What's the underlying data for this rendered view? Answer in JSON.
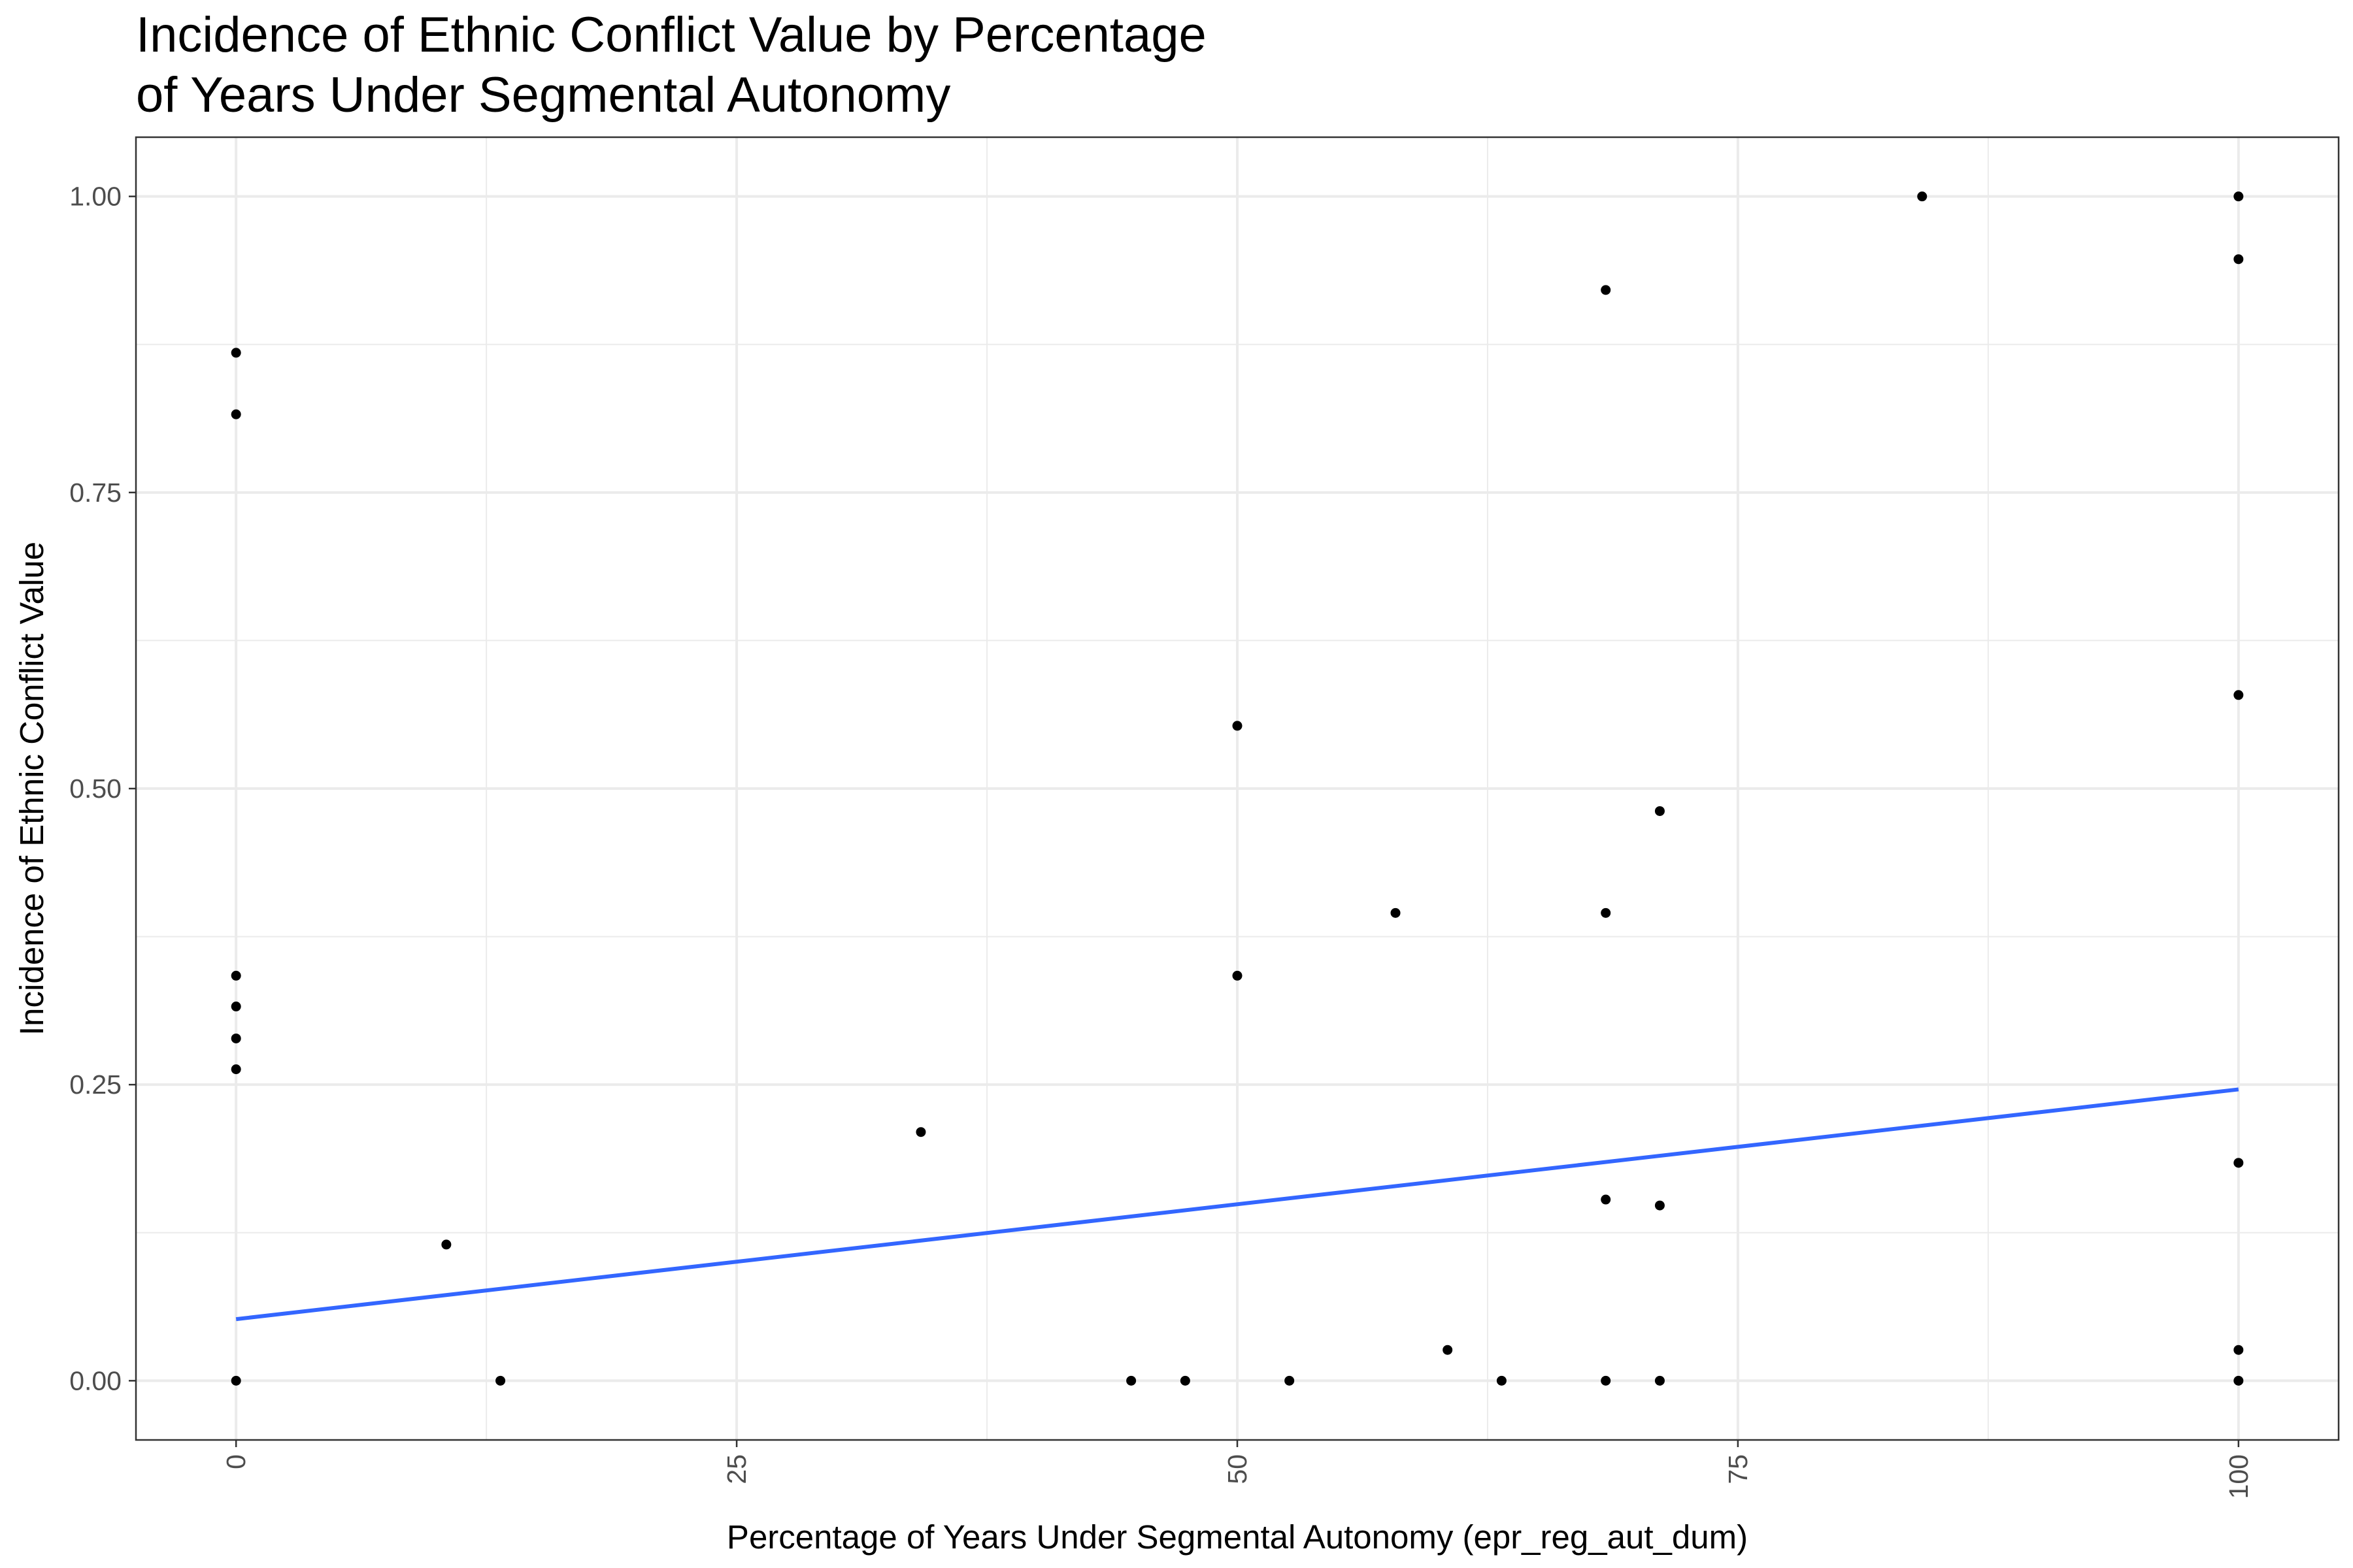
{
  "chart_data": {
    "type": "scatter",
    "title": "Incidence of Ethnic Conflict Value by Percentage of Years Under Segmental Autonomy",
    "title_lines": [
      "Incidence of Ethnic Conflict Value by Percentage",
      "of Years Under Segmental Autonomy"
    ],
    "xlabel": "Percentage of Years Under Segmental Autonomy (epr_reg_aut_dum)",
    "ylabel": "Incidence of Ethnic Conflict Value",
    "xlim": [
      -5,
      105
    ],
    "ylim": [
      -0.05,
      1.05
    ],
    "x_ticks": [
      {
        "value": 0,
        "label": "0"
      },
      {
        "value": 25,
        "label": "25"
      },
      {
        "value": 50,
        "label": "50"
      },
      {
        "value": 75,
        "label": "75"
      },
      {
        "value": 100,
        "label": "100"
      }
    ],
    "y_ticks": [
      {
        "value": 0,
        "label": "0.00"
      },
      {
        "value": 0.25,
        "label": "0.25"
      },
      {
        "value": 0.5,
        "label": "0.50"
      },
      {
        "value": 0.75,
        "label": "0.75"
      },
      {
        "value": 1.0,
        "label": "1.00"
      }
    ],
    "grid": true,
    "colors": {
      "points": "#000000",
      "fit_line": "#3366ff",
      "grid": "#ebebeb",
      "panel_border": "#333333"
    },
    "points": [
      {
        "x": 0,
        "y": 0.868
      },
      {
        "x": 0,
        "y": 0.816
      },
      {
        "x": 0,
        "y": 0.342
      },
      {
        "x": 0,
        "y": 0.316
      },
      {
        "x": 0,
        "y": 0.289
      },
      {
        "x": 0,
        "y": 0.263
      },
      {
        "x": 0,
        "y": 0.0
      },
      {
        "x": 10.5,
        "y": 0.115
      },
      {
        "x": 13.2,
        "y": 0.0
      },
      {
        "x": 34.2,
        "y": 0.21
      },
      {
        "x": 44.7,
        "y": 0.0
      },
      {
        "x": 47.4,
        "y": 0.0
      },
      {
        "x": 50.0,
        "y": 0.553
      },
      {
        "x": 50.0,
        "y": 0.342
      },
      {
        "x": 52.6,
        "y": 0.0
      },
      {
        "x": 57.9,
        "y": 0.395
      },
      {
        "x": 60.5,
        "y": 0.026
      },
      {
        "x": 63.2,
        "y": 0.0
      },
      {
        "x": 68.4,
        "y": 0.921
      },
      {
        "x": 68.4,
        "y": 0.395
      },
      {
        "x": 68.4,
        "y": 0.153
      },
      {
        "x": 68.4,
        "y": 0.0
      },
      {
        "x": 71.1,
        "y": 0.481
      },
      {
        "x": 71.1,
        "y": 0.148
      },
      {
        "x": 71.1,
        "y": 0.0
      },
      {
        "x": 84.2,
        "y": 1.0
      },
      {
        "x": 100,
        "y": 1.0
      },
      {
        "x": 100,
        "y": 0.947
      },
      {
        "x": 100,
        "y": 0.579
      },
      {
        "x": 100,
        "y": 0.184
      },
      {
        "x": 100,
        "y": 0.026
      },
      {
        "x": 100,
        "y": 0.0
      }
    ],
    "fit_line": {
      "method": "linear",
      "x": [
        0,
        100
      ],
      "y": [
        0.052,
        0.246
      ]
    }
  }
}
